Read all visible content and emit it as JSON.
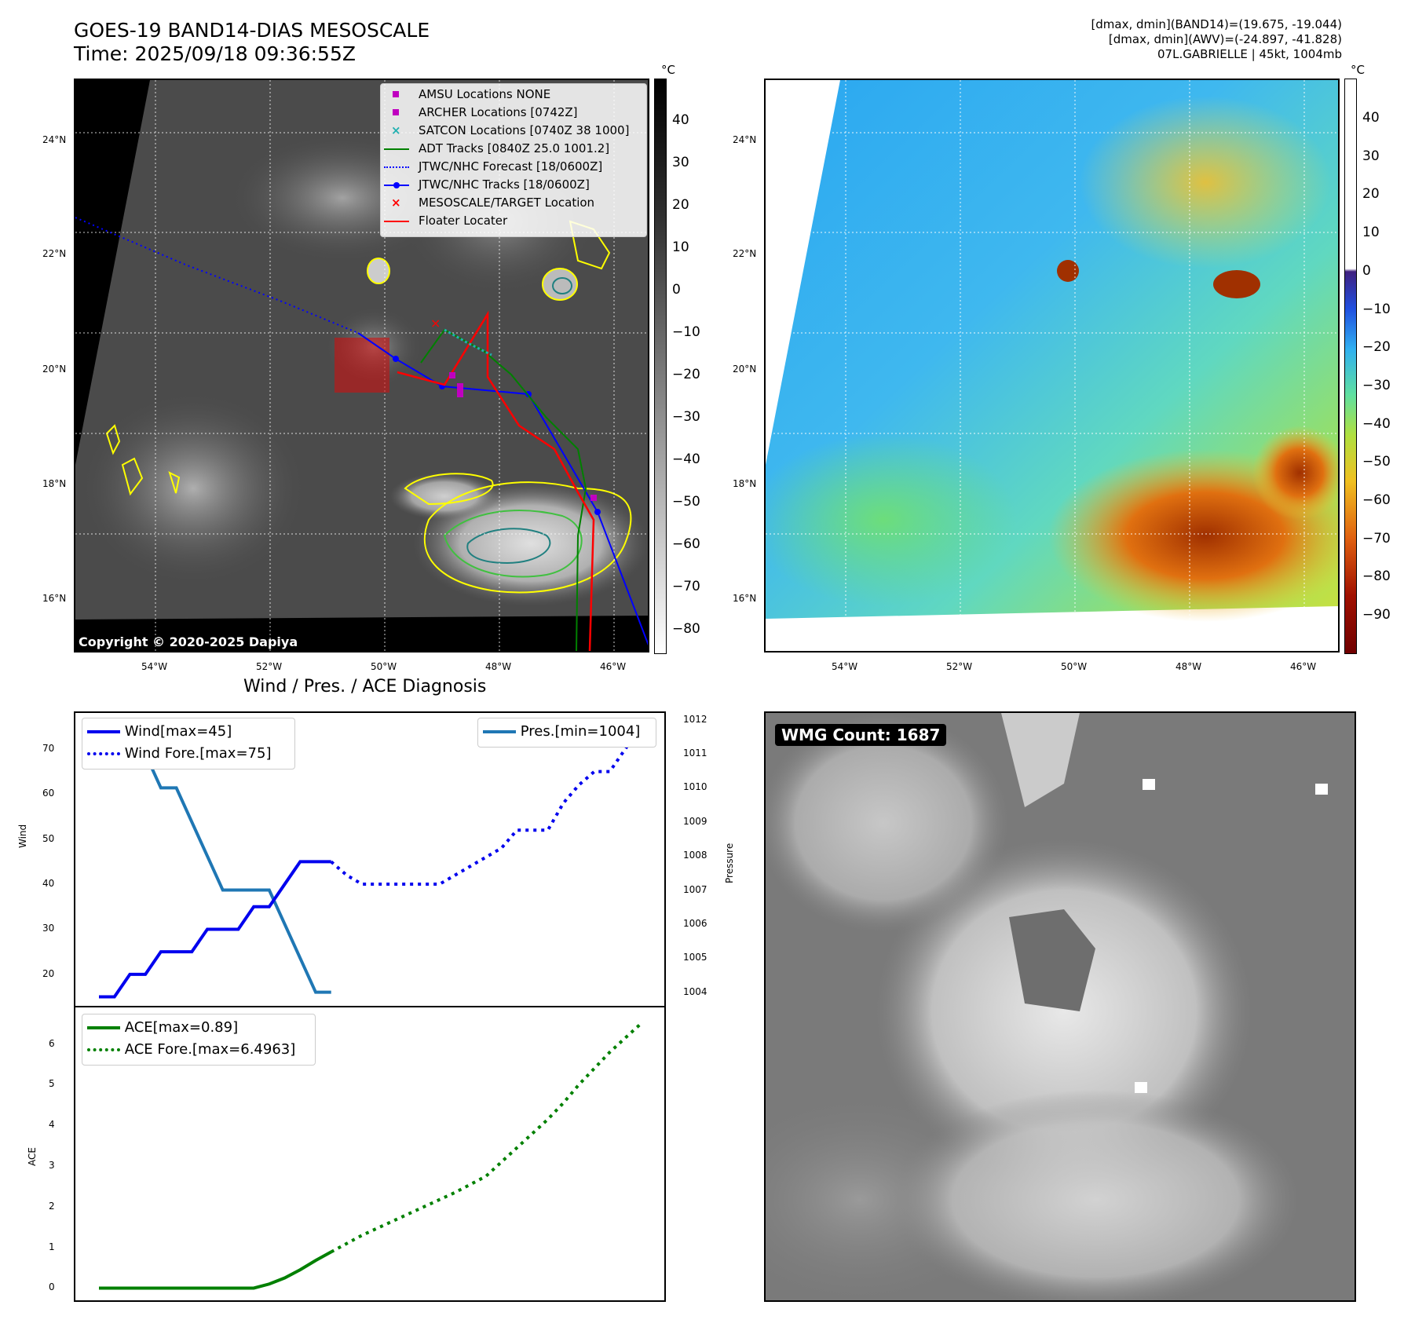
{
  "header": {
    "title_line1": "GOES-19 BAND14-DIAS MESOSCALE",
    "title_line2": "Time: 2025/09/18 09:36:55Z",
    "info_line1": "[dmax, dmin](BAND14)=(19.675, -19.044)",
    "info_line2": "[dmax, dmin](AWV)=(-24.897, -41.828)",
    "info_line3": "07L.GABRIELLE | 45kt, 1004mb"
  },
  "map": {
    "lat_labels": [
      "24°N",
      "22°N",
      "20°N",
      "18°N",
      "16°N"
    ],
    "lon_labels": [
      "54°W",
      "52°W",
      "50°W",
      "48°W",
      "46°W"
    ],
    "copyright": "Copyright © 2020-2025 Dapiya",
    "legend": [
      {
        "label": "AMSU Locations NONE",
        "marker": "square",
        "color": "#c000c0"
      },
      {
        "label": "ARCHER Locations [0742Z]",
        "marker": "square",
        "color": "#c000c0"
      },
      {
        "label": "SATCON Locations [0740Z 38 1000]",
        "marker": "x",
        "color": "#20b0b0"
      },
      {
        "label": "ADT Tracks [0840Z 25.0 1001.2]",
        "marker": "line",
        "color": "#008000"
      },
      {
        "label": "JTWC/NHC Forecast [18/0600Z]",
        "marker": "dotted",
        "color": "#0000ff"
      },
      {
        "label": "JTWC/NHC Tracks [18/0600Z]",
        "marker": "line-dot",
        "color": "#0000ff"
      },
      {
        "label": "MESOSCALE/TARGET Location",
        "marker": "x",
        "color": "#ff0000"
      },
      {
        "label": "Floater Locater",
        "marker": "line",
        "color": "#ff0000"
      }
    ]
  },
  "colorbar_left": {
    "unit": "°C",
    "ticks": [
      "40",
      "30",
      "20",
      "10",
      "0",
      "−10",
      "−20",
      "−30",
      "−40",
      "−50",
      "−60",
      "−70",
      "−80"
    ]
  },
  "colorbar_right": {
    "unit": "°C",
    "ticks": [
      "40",
      "30",
      "20",
      "10",
      "0",
      "−10",
      "−20",
      "−30",
      "−40",
      "−50",
      "−60",
      "−70",
      "−80",
      "−90"
    ]
  },
  "diagnosis": {
    "title": "Wind / Pres. / ACE Diagnosis",
    "wind_ylabel": "Wind",
    "pres_ylabel": "Pressure",
    "ace_ylabel": "ACE",
    "legend_wind": "Wind[max=45]",
    "legend_wind_fore": "Wind Fore.[max=75]",
    "legend_pres": "Pres.[min=1004]",
    "legend_ace": "ACE[max=0.89]",
    "legend_ace_fore": "ACE Fore.[max=6.4963]",
    "colors": {
      "wind": "#0000ee",
      "pres": "#1f77b4",
      "ace": "#008000"
    }
  },
  "wmg": {
    "label": "WMG Count: 1687"
  },
  "chart_data": [
    {
      "type": "line",
      "title": "Wind / Pres. / ACE Diagnosis",
      "ylabel": "Wind",
      "ylim": [
        13,
        78
      ],
      "y_ticks": [
        20,
        30,
        40,
        50,
        60,
        70
      ],
      "series": [
        {
          "name": "Wind[max=45]",
          "style": "solid",
          "x": [
            0,
            1,
            2,
            3,
            4,
            5,
            6,
            7,
            8,
            9,
            10,
            11,
            12,
            13,
            14,
            15
          ],
          "values": [
            15,
            15,
            20,
            20,
            25,
            25,
            25,
            30,
            30,
            30,
            35,
            35,
            40,
            45,
            45,
            45
          ]
        },
        {
          "name": "Wind Fore.[max=75]",
          "style": "dotted",
          "x": [
            15,
            16,
            17,
            18,
            19,
            20,
            21,
            22,
            23,
            24,
            25,
            26,
            27,
            28,
            29,
            30,
            31,
            32,
            33,
            34,
            35
          ],
          "values": [
            45,
            42,
            40,
            40,
            40,
            40,
            40,
            40,
            42,
            44,
            46,
            48,
            52,
            52,
            52,
            58,
            62,
            65,
            65,
            70,
            75
          ]
        }
      ]
    },
    {
      "type": "line",
      "ylabel": "Pressure",
      "ylim": [
        1003.6,
        1012.2
      ],
      "y_ticks": [
        1004,
        1005,
        1006,
        1007,
        1008,
        1009,
        1010,
        1011,
        1012
      ],
      "series": [
        {
          "name": "Pres.[min=1004]",
          "style": "solid",
          "x": [
            0,
            1,
            2,
            3,
            4,
            5,
            6,
            7,
            8,
            9,
            10,
            11,
            12,
            13,
            14,
            15
          ],
          "values": [
            1012,
            1012,
            1011,
            1011,
            1010,
            1010,
            1009,
            1008,
            1007,
            1007,
            1007,
            1007,
            1006,
            1005,
            1004,
            1004
          ]
        }
      ]
    },
    {
      "type": "line",
      "ylabel": "ACE",
      "ylim": [
        -0.3,
        6.9
      ],
      "y_ticks": [
        0,
        1,
        2,
        3,
        4,
        5,
        6
      ],
      "series": [
        {
          "name": "ACE[max=0.89]",
          "style": "solid",
          "x": [
            0,
            2,
            4,
            6,
            8,
            10,
            11,
            12,
            13,
            14,
            15
          ],
          "values": [
            0,
            0,
            0,
            0,
            0,
            0,
            0.1,
            0.25,
            0.45,
            0.68,
            0.89
          ]
        },
        {
          "name": "ACE Fore.[max=6.4963]",
          "style": "dotted",
          "x": [
            15,
            17,
            19,
            21,
            23,
            25,
            26,
            27,
            28,
            29,
            30,
            31,
            32,
            33,
            34,
            35
          ],
          "values": [
            0.89,
            1.3,
            1.65,
            2.0,
            2.35,
            2.75,
            3.1,
            3.45,
            3.8,
            4.15,
            4.55,
            5.0,
            5.4,
            5.8,
            6.15,
            6.4963
          ]
        }
      ]
    }
  ]
}
